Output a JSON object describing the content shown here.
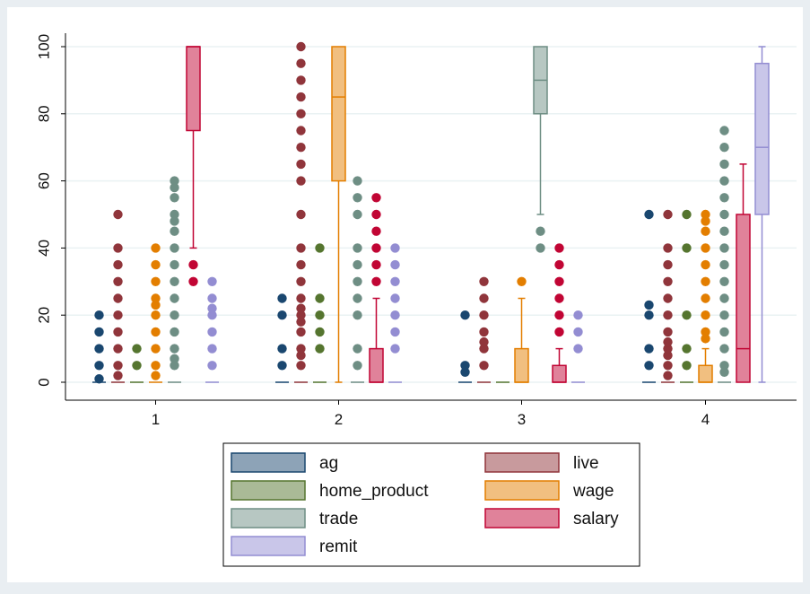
{
  "chart_data": {
    "type": "box",
    "title": "",
    "xlabel": "",
    "ylabel": "",
    "ylim": [
      0,
      100
    ],
    "y_ticks": [
      "0",
      "20",
      "40",
      "60",
      "80",
      "100"
    ],
    "grid": true,
    "legend_position": "bottom",
    "categories": [
      "1",
      "2",
      "3",
      "4"
    ],
    "series": [
      {
        "name": "ag",
        "color": "#1a476f",
        "boxes": [
          {
            "min": 0,
            "q1": 0,
            "median": 0,
            "q3": 0,
            "max": 0,
            "outliers": [
              1,
              5,
              10,
              15,
              20
            ]
          },
          {
            "min": 0,
            "q1": 0,
            "median": 0,
            "q3": 0,
            "max": 0,
            "outliers": [
              5,
              10,
              20,
              25
            ]
          },
          {
            "min": 0,
            "q1": 0,
            "median": 0,
            "q3": 0,
            "max": 0,
            "outliers": [
              3,
              5,
              20
            ]
          },
          {
            "min": 0,
            "q1": 0,
            "median": 0,
            "q3": 0,
            "max": 0,
            "outliers": [
              5,
              10,
              20,
              23,
              50
            ]
          }
        ]
      },
      {
        "name": "live",
        "color": "#90353b",
        "boxes": [
          {
            "min": 0,
            "q1": 0,
            "median": 0,
            "q3": 0,
            "max": 0,
            "outliers": [
              2,
              5,
              10,
              15,
              20,
              25,
              30,
              35,
              40,
              50
            ]
          },
          {
            "min": 0,
            "q1": 0,
            "median": 0,
            "q3": 0,
            "max": 0,
            "outliers": [
              5,
              8,
              10,
              15,
              18,
              20,
              22,
              25,
              30,
              35,
              40,
              50,
              60,
              65,
              70,
              75,
              80,
              85,
              90,
              95,
              100
            ]
          },
          {
            "min": 0,
            "q1": 0,
            "median": 0,
            "q3": 0,
            "max": 0,
            "outliers": [
              5,
              10,
              12,
              15,
              20,
              25,
              30
            ]
          },
          {
            "min": 0,
            "q1": 0,
            "median": 0,
            "q3": 0,
            "max": 0,
            "outliers": [
              2,
              5,
              8,
              10,
              12,
              15,
              20,
              25,
              30,
              35,
              40,
              50
            ]
          }
        ]
      },
      {
        "name": "home_product",
        "color": "#55752f",
        "boxes": [
          {
            "min": 0,
            "q1": 0,
            "median": 0,
            "q3": 0,
            "max": 0,
            "outliers": [
              5,
              10
            ]
          },
          {
            "min": 0,
            "q1": 0,
            "median": 0,
            "q3": 0,
            "max": 0,
            "outliers": [
              10,
              15,
              20,
              25,
              40
            ]
          },
          {
            "min": 0,
            "q1": 0,
            "median": 0,
            "q3": 0,
            "max": 0,
            "outliers": []
          },
          {
            "min": 0,
            "q1": 0,
            "median": 0,
            "q3": 0,
            "max": 0,
            "outliers": [
              5,
              10,
              20,
              40,
              50
            ]
          }
        ]
      },
      {
        "name": "wage",
        "color": "#e37e00",
        "boxes": [
          {
            "min": 0,
            "q1": 0,
            "median": 0,
            "q3": 0,
            "max": 0,
            "outliers": [
              2,
              5,
              10,
              15,
              20,
              23,
              25,
              30,
              35,
              40
            ]
          },
          {
            "min": 0,
            "q1": 60,
            "median": 85,
            "q3": 100,
            "max": 100,
            "outliers": []
          },
          {
            "min": 0,
            "q1": 0,
            "median": 0,
            "q3": 10,
            "max": 25,
            "outliers": [
              30
            ]
          },
          {
            "min": 0,
            "q1": 0,
            "median": 0,
            "q3": 5,
            "max": 10,
            "outliers": [
              13,
              15,
              20,
              25,
              30,
              35,
              40,
              45,
              48,
              50
            ]
          }
        ]
      },
      {
        "name": "trade",
        "color": "#6e8e84",
        "boxes": [
          {
            "min": 0,
            "q1": 0,
            "median": 0,
            "q3": 0,
            "max": 0,
            "outliers": [
              5,
              7,
              10,
              15,
              20,
              25,
              30,
              35,
              40,
              45,
              48,
              50,
              55,
              58,
              60
            ]
          },
          {
            "min": 0,
            "q1": 0,
            "median": 0,
            "q3": 0,
            "max": 0,
            "outliers": [
              5,
              10,
              20,
              25,
              30,
              35,
              40,
              50,
              55,
              60
            ]
          },
          {
            "min": 50,
            "q1": 80,
            "median": 90,
            "q3": 100,
            "max": 100,
            "outliers": [
              40,
              45
            ]
          },
          {
            "min": 0,
            "q1": 0,
            "median": 0,
            "q3": 0,
            "max": 0,
            "outliers": [
              3,
              5,
              10,
              15,
              20,
              25,
              30,
              35,
              40,
              45,
              50,
              55,
              60,
              65,
              70,
              75
            ]
          }
        ]
      },
      {
        "name": "salary",
        "color": "#c10534",
        "boxes": [
          {
            "min": 40,
            "q1": 75,
            "median": 100,
            "q3": 100,
            "max": 100,
            "outliers": [
              30,
              35
            ]
          },
          {
            "min": 0,
            "q1": 0,
            "median": 0,
            "q3": 10,
            "max": 25,
            "outliers": [
              30,
              35,
              40,
              45,
              50,
              55
            ]
          },
          {
            "min": 0,
            "q1": 0,
            "median": 0,
            "q3": 5,
            "max": 10,
            "outliers": [
              15,
              20,
              25,
              30,
              35,
              40
            ]
          },
          {
            "min": 0,
            "q1": 0,
            "median": 10,
            "q3": 50,
            "max": 65,
            "outliers": []
          }
        ]
      },
      {
        "name": "remit",
        "color": "#938dd2",
        "boxes": [
          {
            "min": 0,
            "q1": 0,
            "median": 0,
            "q3": 0,
            "max": 0,
            "outliers": [
              5,
              10,
              15,
              20,
              22,
              25,
              30
            ]
          },
          {
            "min": 0,
            "q1": 0,
            "median": 0,
            "q3": 0,
            "max": 0,
            "outliers": [
              10,
              15,
              20,
              25,
              30,
              35,
              40
            ]
          },
          {
            "min": 0,
            "q1": 0,
            "median": 0,
            "q3": 0,
            "max": 0,
            "outliers": [
              10,
              15,
              20
            ]
          },
          {
            "min": 0,
            "q1": 50,
            "median": 70,
            "q3": 95,
            "max": 100,
            "outliers": []
          }
        ]
      }
    ]
  },
  "legend": {
    "items": [
      {
        "label": "ag",
        "color": "#1a476f"
      },
      {
        "label": "live",
        "color": "#90353b"
      },
      {
        "label": "home_product",
        "color": "#55752f"
      },
      {
        "label": "wage",
        "color": "#e37e00"
      },
      {
        "label": "trade",
        "color": "#6e8e84"
      },
      {
        "label": "salary",
        "color": "#c10534"
      },
      {
        "label": "remit",
        "color": "#938dd2"
      }
    ]
  }
}
